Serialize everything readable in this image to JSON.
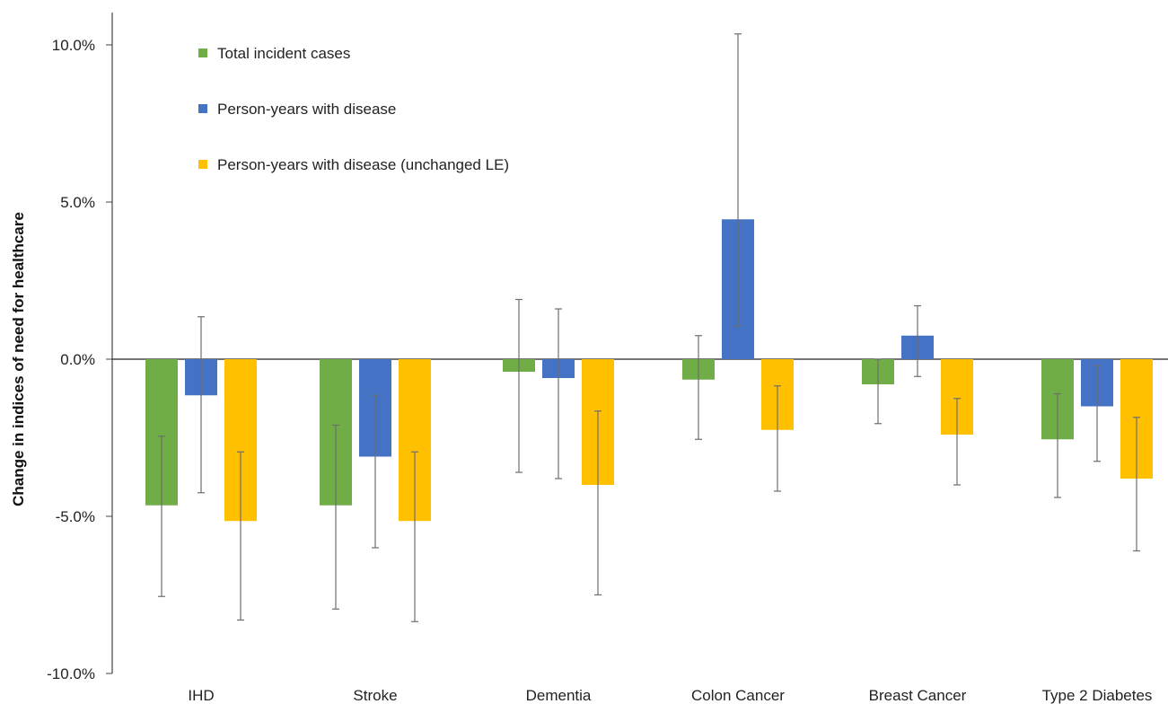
{
  "chart_data": {
    "type": "bar",
    "ylabel": "Change in indices of need for healthcare",
    "xlabel": "",
    "ylim": [
      -10,
      10
    ],
    "yticks": [
      10,
      5,
      0,
      -5,
      -10
    ],
    "ytick_labels": [
      "10.0%",
      "5.0%",
      "0.0%",
      "-5.0%",
      "-10.0%"
    ],
    "grid": false,
    "legend_position": "top-left",
    "categories": [
      "IHD",
      "Stroke",
      "Dementia",
      "Colon Cancer",
      "Breast Cancer",
      "Type 2 Diabetes"
    ],
    "series": [
      {
        "name": "Total incident cases",
        "color": "#70AD47",
        "values": [
          -4.65,
          -4.65,
          -0.4,
          -0.65,
          -0.8,
          -2.55
        ],
        "error_low": [
          -7.55,
          -7.95,
          -3.6,
          -2.55,
          -2.05,
          -4.4
        ],
        "error_high": [
          -2.45,
          -2.1,
          1.9,
          0.75,
          0.0,
          -1.1
        ]
      },
      {
        "name": "Person-years with disease",
        "color": "#4472C4",
        "values": [
          -1.15,
          -3.1,
          -0.6,
          4.45,
          0.75,
          -1.5
        ],
        "error_low": [
          -4.25,
          -6.0,
          -3.8,
          1.05,
          -0.55,
          -3.25
        ],
        "error_high": [
          1.35,
          -1.15,
          1.6,
          10.35,
          1.7,
          -0.2
        ]
      },
      {
        "name": "Person-years with disease (unchanged LE)",
        "color": "#FFC000",
        "values": [
          -5.15,
          -5.15,
          -4.0,
          -2.25,
          -2.4,
          -3.8
        ],
        "error_low": [
          -8.3,
          -8.35,
          -7.5,
          -4.2,
          -4.0,
          -6.1
        ],
        "error_high": [
          -2.95,
          -2.95,
          -1.65,
          -0.85,
          -1.25,
          -1.85
        ]
      }
    ]
  }
}
